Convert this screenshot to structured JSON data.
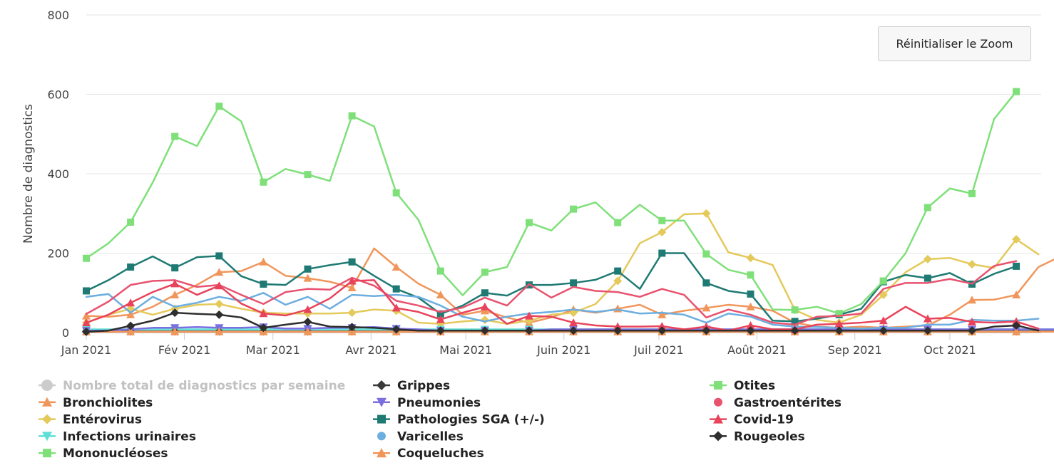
{
  "reset_zoom_label": "Réinitialiser le Zoom",
  "chart_data": {
    "type": "line",
    "ylabel": "Nombre de diagnostics",
    "ylim": [
      0,
      800
    ],
    "yticks": [
      0,
      200,
      400,
      600,
      800
    ],
    "grid": true,
    "x_start": "2021-01-01",
    "x_step_days": 7,
    "month_ticks": [
      {
        "label": "Jan 2021",
        "week": 0
      },
      {
        "label": "Fév 2021",
        "week": 4.43
      },
      {
        "label": "Mar 2021",
        "week": 8.43
      },
      {
        "label": "Avr 2021",
        "week": 12.86
      },
      {
        "label": "Mai 2021",
        "week": 17.14
      },
      {
        "label": "Juin 2021",
        "week": 21.57
      },
      {
        "label": "Juil 2021",
        "week": 25.86
      },
      {
        "label": "Août 2021",
        "week": 30.29
      },
      {
        "label": "Sep 2021",
        "week": 34.71
      },
      {
        "label": "Oct 2021",
        "week": 39
      }
    ],
    "series": [
      {
        "name": "Nombre total de diagnostics par semaine",
        "color": "#bbbbbb",
        "marker": "circle",
        "visible": false,
        "values": []
      },
      {
        "name": "Bronchiolites",
        "color": "#f1965b",
        "marker": "triangle",
        "visible": true,
        "values": [
          42,
          40,
          45,
          65,
          95,
          120,
          152,
          155,
          178,
          143,
          137,
          128,
          113,
          212,
          165,
          123,
          95,
          45,
          55,
          38,
          25,
          38,
          58,
          50,
          60,
          70,
          45,
          55,
          62,
          70,
          65,
          55,
          25,
          15,
          12,
          15,
          12,
          15,
          18,
          45,
          82,
          83,
          95,
          165,
          192
        ]
      },
      {
        "name": "Entérovirus",
        "color": "#e4c95b",
        "marker": "diamond",
        "visible": true,
        "values": [
          25,
          45,
          60,
          45,
          60,
          70,
          72,
          60,
          50,
          48,
          48,
          48,
          50,
          58,
          55,
          25,
          22,
          28,
          32,
          22,
          30,
          45,
          50,
          72,
          130,
          225,
          253,
          298,
          300,
          202,
          188,
          170,
          57,
          32,
          25,
          45,
          95,
          152,
          185,
          188,
          172,
          163,
          235,
          197
        ]
      },
      {
        "name": "Infections urinaires",
        "color": "#5ee0d8",
        "marker": "triangle-down",
        "visible": true,
        "values": [
          8,
          8,
          8,
          8,
          8,
          8,
          8,
          8,
          8,
          8,
          8,
          8,
          8,
          8,
          8,
          8,
          8,
          8,
          8,
          8,
          8,
          8,
          8,
          8,
          8,
          8,
          8,
          8,
          8,
          8,
          8,
          8,
          8,
          8,
          8,
          8,
          8,
          8,
          8,
          8,
          8,
          8,
          8,
          8,
          8
        ]
      },
      {
        "name": "Mononucléoses",
        "color": "#7fe07a",
        "marker": "square",
        "visible": true,
        "values": [
          3,
          3,
          3,
          3,
          3,
          3,
          3,
          3,
          3,
          3,
          3,
          3,
          3,
          3,
          3,
          3,
          3,
          3,
          3,
          3,
          3,
          3,
          3,
          3,
          3,
          3,
          3,
          3,
          3,
          3,
          3,
          3,
          3,
          3,
          3,
          3,
          3,
          3,
          3,
          3,
          3,
          3,
          3,
          3,
          3
        ]
      },
      {
        "name": "Grippes",
        "color": "#3a3a3a",
        "marker": "diamond",
        "visible": true,
        "values": [
          3,
          3,
          3,
          3,
          3,
          3,
          3,
          3,
          3,
          3,
          3,
          3,
          3,
          3,
          3,
          3,
          3,
          3,
          3,
          3,
          3,
          3,
          3,
          3,
          3,
          3,
          3,
          3,
          3,
          3,
          3,
          3,
          3,
          3,
          3,
          3,
          3,
          3,
          3,
          3,
          3,
          3,
          3,
          3,
          3
        ]
      },
      {
        "name": "Pneumonies",
        "color": "#7b6fe0",
        "marker": "triangle-down",
        "visible": true,
        "values": [
          5,
          5,
          8,
          12,
          12,
          14,
          12,
          12,
          14,
          10,
          10,
          12,
          12,
          14,
          10,
          8,
          5,
          5,
          5,
          5,
          5,
          8,
          8,
          8,
          8,
          8,
          8,
          8,
          8,
          8,
          8,
          8,
          8,
          8,
          8,
          8,
          8,
          8,
          8,
          8,
          8,
          8,
          8,
          8,
          8
        ]
      },
      {
        "name": "Pathologies SGA (+/-)",
        "color": "#1f7a74",
        "marker": "square",
        "visible": true,
        "values": [
          105,
          132,
          165,
          192,
          163,
          190,
          193,
          142,
          122,
          120,
          160,
          170,
          178,
          143,
          110,
          88,
          47,
          68,
          100,
          93,
          120,
          120,
          125,
          133,
          155,
          110,
          200,
          200,
          125,
          105,
          97,
          30,
          28,
          35,
          45,
          60,
          128,
          145,
          137,
          150,
          122,
          148,
          167
        ]
      },
      {
        "name": "Varicelles",
        "color": "#6caee0",
        "marker": "circle",
        "visible": true,
        "values": [
          90,
          97,
          50,
          90,
          65,
          75,
          90,
          80,
          100,
          70,
          90,
          60,
          95,
          92,
          95,
          90,
          68,
          40,
          28,
          40,
          48,
          52,
          58,
          52,
          58,
          48,
          50,
          45,
          25,
          48,
          40,
          20,
          15,
          14,
          12,
          10,
          12,
          12,
          20,
          20,
          32,
          30,
          30,
          35
        ]
      },
      {
        "name": "Coqueluches",
        "color": "#f1965b",
        "marker": "triangle",
        "visible": true,
        "values": [
          2,
          2,
          2,
          2,
          2,
          2,
          2,
          2,
          2,
          2,
          2,
          2,
          2,
          2,
          2,
          2,
          2,
          2,
          2,
          2,
          2,
          2,
          2,
          2,
          2,
          2,
          2,
          2,
          2,
          2,
          2,
          2,
          2,
          2,
          2,
          2,
          2,
          2,
          2,
          2,
          2,
          2,
          2,
          2,
          2
        ]
      },
      {
        "name": "Otites",
        "color": "#7fe07a",
        "marker": "square",
        "visible": true,
        "values": [
          187,
          225,
          278,
          378,
          494,
          470,
          570,
          532,
          379,
          412,
          398,
          382,
          546,
          519,
          352,
          284,
          155,
          94,
          152,
          165,
          277,
          257,
          311,
          328,
          277,
          322,
          282,
          282,
          198,
          158,
          145,
          58,
          57,
          65,
          48,
          72,
          130,
          200,
          315,
          363,
          350,
          538,
          607
        ]
      },
      {
        "name": "Gastroentérites",
        "color": "#e8526f",
        "marker": "circle",
        "visible": true,
        "values": [
          47,
          78,
          120,
          130,
          132,
          115,
          120,
          95,
          72,
          102,
          110,
          108,
          138,
          118,
          80,
          68,
          52,
          63,
          88,
          68,
          122,
          88,
          115,
          105,
          102,
          90,
          110,
          95,
          38,
          58,
          45,
          25,
          20,
          40,
          42,
          48,
          110,
          125,
          125,
          135,
          123,
          168,
          180
        ]
      },
      {
        "name": "Covid-19",
        "color": "#e8435a",
        "marker": "triangle",
        "visible": true,
        "values": [
          25,
          45,
          75,
          102,
          123,
          95,
          118,
          73,
          48,
          43,
          58,
          86,
          130,
          132,
          62,
          52,
          33,
          50,
          65,
          22,
          42,
          40,
          25,
          18,
          15,
          15,
          16,
          8,
          15,
          5,
          18,
          8,
          8,
          20,
          22,
          25,
          30,
          65,
          35,
          37,
          27,
          25,
          28,
          10
        ]
      },
      {
        "name": "Rougeoles",
        "color": "#2e2e2e",
        "marker": "diamond",
        "visible": true,
        "values": [
          2,
          5,
          17,
          30,
          50,
          47,
          45,
          38,
          12,
          20,
          27,
          15,
          14,
          12,
          8,
          5,
          5,
          5,
          5,
          5,
          5,
          5,
          5,
          5,
          5,
          5,
          5,
          5,
          5,
          5,
          5,
          5,
          5,
          5,
          5,
          5,
          5,
          5,
          5,
          5,
          5,
          15,
          18,
          5
        ]
      }
    ]
  }
}
